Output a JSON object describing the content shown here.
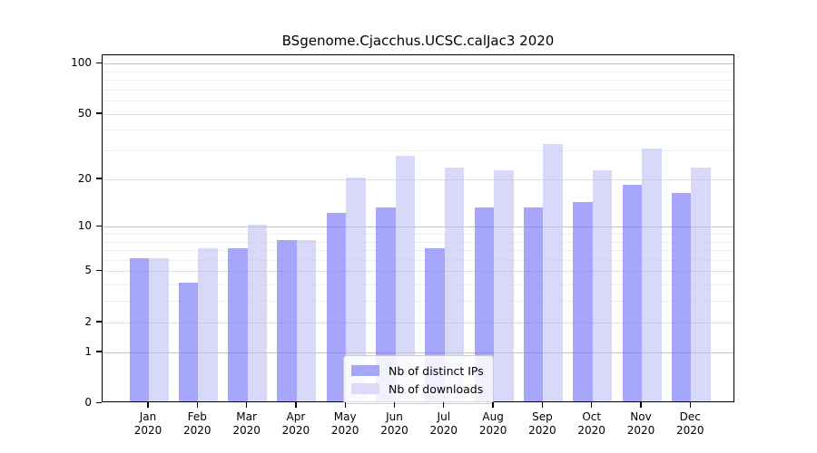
{
  "title": "BSgenome.Cjacchus.UCSC.calJac3 2020",
  "chart_data": {
    "type": "bar",
    "title": "BSgenome.Cjacchus.UCSC.calJac3 2020",
    "categories": [
      "Jan",
      "Feb",
      "Mar",
      "Apr",
      "May",
      "Jun",
      "Jul",
      "Aug",
      "Sep",
      "Oct",
      "Nov",
      "Dec"
    ],
    "category_year": "2020",
    "series": [
      {
        "name": "Nb of distinct IPs",
        "color": "#a6a6f7",
        "fill": "rgba(120,120,248,0.66)",
        "values": [
          6,
          4,
          7,
          8,
          12,
          13,
          7,
          13,
          13,
          14,
          18,
          16
        ]
      },
      {
        "name": "Nb of downloads",
        "color": "#dbdbf9",
        "fill": "rgba(190,190,244,0.60)",
        "values": [
          6,
          7,
          10,
          8,
          20,
          27,
          23,
          22,
          32,
          22,
          30,
          23
        ]
      }
    ],
    "y_axis": {
      "scale": "log1p",
      "tick_values": [
        0,
        1,
        2,
        5,
        10,
        20,
        50,
        100
      ],
      "tick_labels": [
        "0",
        "1",
        "2",
        "5",
        "10",
        "20",
        "50",
        "100"
      ],
      "decade_gridlines": [
        1,
        10,
        100
      ],
      "submajor_gridlines": [
        2,
        5,
        20,
        50
      ],
      "minor_gridlines": [
        3,
        4,
        6,
        7,
        8,
        9,
        30,
        40,
        60,
        70,
        80,
        90
      ],
      "top_value": 112
    },
    "legend": {
      "position": "bottom-center",
      "entries": [
        "Nb of distinct IPs",
        "Nb of downloads"
      ]
    },
    "grid": true,
    "ylim": [
      0,
      112
    ]
  },
  "colors": {
    "gridline_decade": "#c3c3c3",
    "gridline_submajor": "#dedede",
    "gridline_minor": "#efefef",
    "axis": "#000000",
    "background": "#ffffff"
  }
}
